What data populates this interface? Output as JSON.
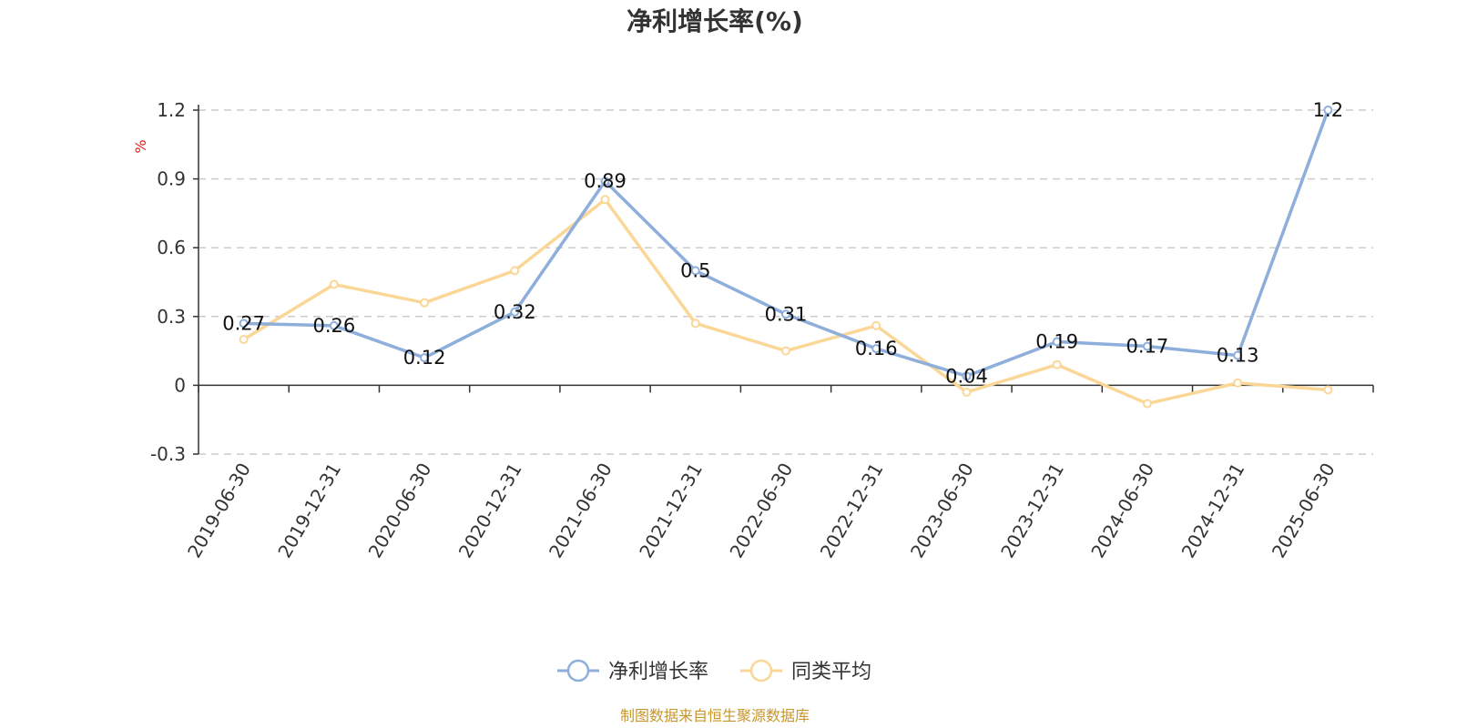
{
  "chart_data": {
    "type": "line",
    "title": "净利增长率(%)",
    "ylabel": "%",
    "x": [
      "2019-06-30",
      "2019-12-31",
      "2020-06-30",
      "2020-12-31",
      "2021-06-30",
      "2021-12-31",
      "2022-06-30",
      "2022-12-31",
      "2023-06-30",
      "2023-12-31",
      "2024-06-30",
      "2024-12-31",
      "2025-06-30"
    ],
    "yticks": [
      "1.2",
      "0.9",
      "0.6",
      "0.3",
      "0",
      "-0.3"
    ],
    "ylim": [
      -0.3,
      1.2
    ],
    "grid": true,
    "legend_position": "bottom-center",
    "series": [
      {
        "name": "净利增长率",
        "color": "#8eaedb",
        "values": [
          0.27,
          0.26,
          0.12,
          0.32,
          0.89,
          0.5,
          0.31,
          0.16,
          0.04,
          0.19,
          0.17,
          0.13,
          1.2
        ],
        "labels": [
          "0.27",
          "0.26",
          "0.12",
          "0.32",
          "0.89",
          "0.5",
          "0.31",
          "0.16",
          "0.04",
          "0.19",
          "0.17",
          "0.13",
          "1.2"
        ]
      },
      {
        "name": "同类平均",
        "color": "#fad797",
        "values": [
          0.2,
          0.44,
          0.36,
          0.5,
          0.81,
          0.27,
          0.15,
          0.26,
          -0.03,
          0.09,
          -0.08,
          0.01,
          -0.02
        ]
      }
    ],
    "source": "制图数据来自恒生聚源数据库",
    "source_color": "#c8962a",
    "unit_color": "#e02020"
  }
}
